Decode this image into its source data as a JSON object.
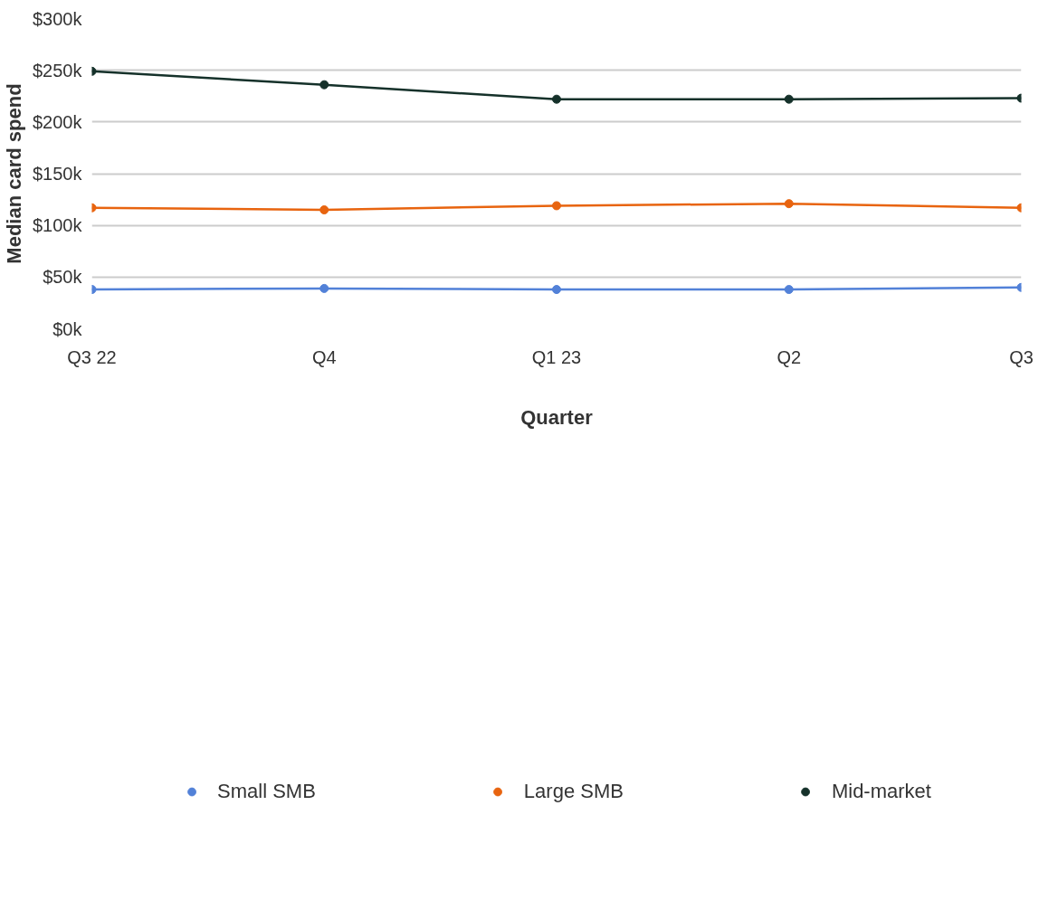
{
  "chart_data": {
    "type": "line",
    "xlabel": "Quarter",
    "ylabel": "Median card spend",
    "categories": [
      "Q3 22",
      "Q4",
      "Q1 23",
      "Q2",
      "Q3"
    ],
    "series": [
      {
        "name": "Small SMB",
        "color": "#5281d8",
        "values": [
          38,
          39,
          38,
          38,
          40
        ]
      },
      {
        "name": "Large SMB",
        "color": "#e8640f",
        "values": [
          117,
          115,
          119,
          121,
          117
        ]
      },
      {
        "name": "Mid-market",
        "color": "#15312a",
        "values": [
          249,
          236,
          222,
          222,
          223
        ]
      }
    ],
    "ylim": [
      0,
      300
    ],
    "yticks": [
      {
        "value": 0,
        "label": "$0k"
      },
      {
        "value": 50,
        "label": "$50k"
      },
      {
        "value": 100,
        "label": "$100k"
      },
      {
        "value": 150,
        "label": "$150k"
      },
      {
        "value": 200,
        "label": "$200k"
      },
      {
        "value": 250,
        "label": "$250k"
      },
      {
        "value": 300,
        "label": "$300k"
      }
    ],
    "grid": "y",
    "legend": "bottom",
    "marker": "circle",
    "line_style": "solid"
  }
}
